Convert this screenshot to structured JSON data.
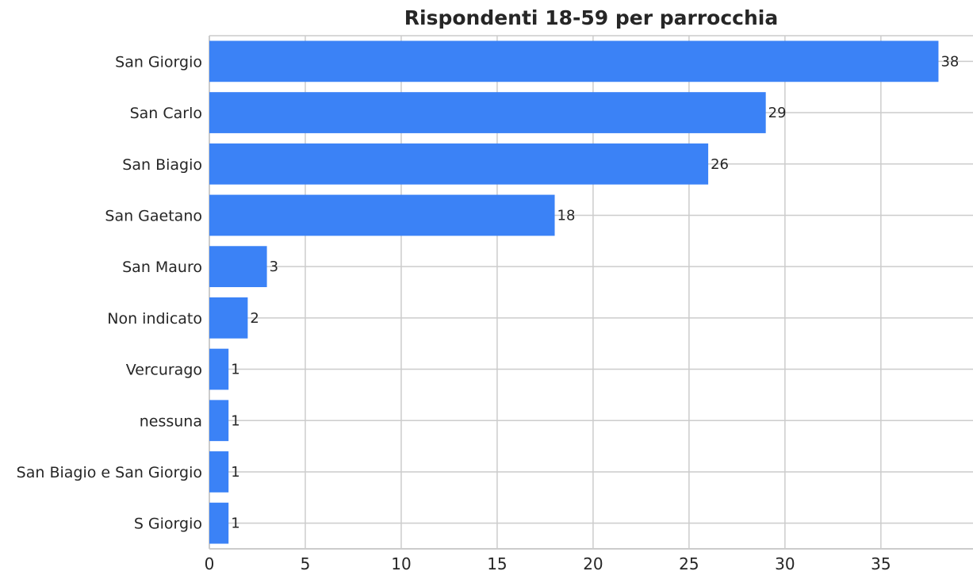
{
  "chart_data": {
    "type": "bar",
    "orientation": "horizontal",
    "title": "Rispondenti 18-59 per parrocchia",
    "xlabel": "",
    "ylabel": "",
    "categories": [
      "San Giorgio",
      "San Carlo",
      "San Biagio",
      "San Gaetano",
      "San Mauro",
      "Non indicato",
      "Vercurago",
      "nessuna",
      "San Biagio e San Giorgio",
      "S Giorgio"
    ],
    "values": [
      38,
      29,
      26,
      18,
      3,
      2,
      1,
      1,
      1,
      1
    ],
    "data_labels": [
      "38",
      "29",
      "26",
      "18",
      "3",
      "2",
      "1",
      "1",
      "1",
      "1"
    ],
    "xlim": [
      0,
      39.8
    ],
    "xticks": [
      0,
      5,
      10,
      15,
      20,
      25,
      30,
      35
    ],
    "grid": true,
    "bar_color": "#3b82f6",
    "grid_color": "#cccccc",
    "text_color": "#262626"
  }
}
